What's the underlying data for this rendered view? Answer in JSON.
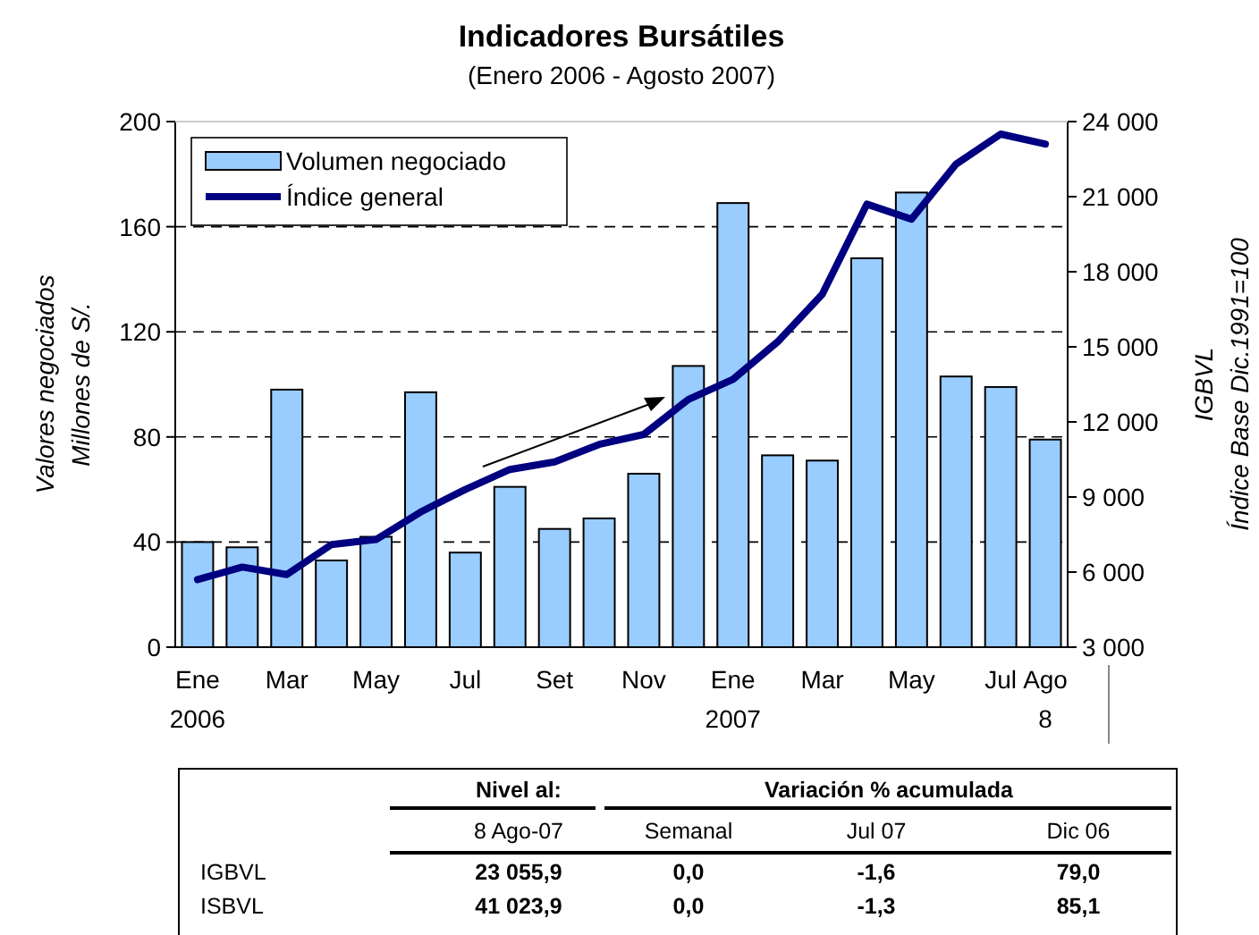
{
  "chart_data": {
    "type": "bar",
    "title": "Indicadores Bursátiles",
    "subtitle": "(Enero 2006 - Agosto 2007)",
    "ylabel": "Valores negociados\nMillones de S/.",
    "y2label": "IGBVL\nÍndice Base Dic.1991=100",
    "categories": [
      "Ene\n2006",
      null,
      "Mar",
      null,
      "May",
      null,
      "Jul",
      null,
      "Set",
      null,
      "Nov",
      null,
      "Ene\n2007",
      null,
      "Mar",
      null,
      "May",
      null,
      "Jul",
      "Ago\n8"
    ],
    "series": [
      {
        "name": "Volumen negociado",
        "color": "#99ccff",
        "values": [
          40,
          38,
          98,
          33,
          42,
          97,
          36,
          61,
          45,
          49,
          66,
          107,
          169,
          73,
          71,
          148,
          173,
          103,
          99,
          79
        ]
      },
      {
        "name": "Índice general",
        "type": "line",
        "axis": "y2",
        "color": "#000080",
        "values": [
          5700,
          6200,
          5900,
          7100,
          7300,
          8400,
          9300,
          10100,
          10400,
          11100,
          11500,
          12900,
          13700,
          15200,
          17100,
          20700,
          20100,
          22300,
          23500,
          23100
        ]
      }
    ],
    "ylim": [
      0,
      200
    ],
    "yticks": [
      0,
      40,
      80,
      120,
      160,
      200
    ],
    "y2lim": [
      3000,
      24000
    ],
    "y2ticks": [
      {
        "value": 3000,
        "label": "3 000"
      },
      {
        "value": 6000,
        "label": "6 000"
      },
      {
        "value": 9000,
        "label": "9 000"
      },
      {
        "value": 12000,
        "label": "12 000"
      },
      {
        "value": 15000,
        "label": "15 000"
      },
      {
        "value": 18000,
        "label": "18 000"
      },
      {
        "value": 21000,
        "label": "21 000"
      },
      {
        "value": 24000,
        "label": "24 000"
      }
    ],
    "grid": "y",
    "legend": "top left",
    "line_style": "solid",
    "marker": "none",
    "annotations": [
      "Nivel al:",
      "Variación % acumulada",
      "8 Ago-07",
      "Semanal",
      "Jul 07",
      "Dic 06",
      "IGBVL",
      "23 055,9",
      "0,0",
      "-1,6",
      "79,0",
      "ISBVL",
      "41 023,9",
      "0,0",
      "-1,3",
      "85,1"
    ]
  }
}
